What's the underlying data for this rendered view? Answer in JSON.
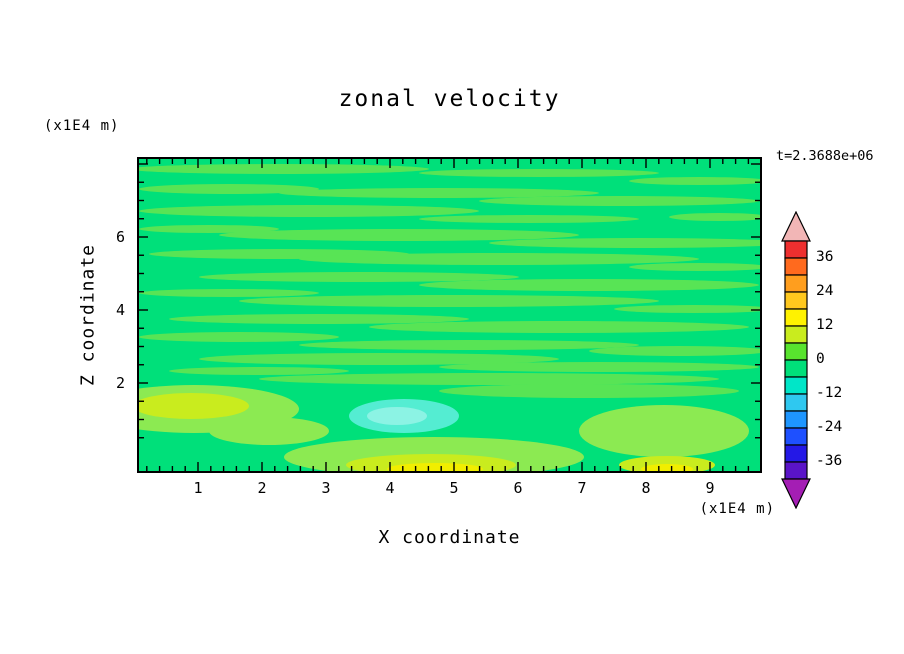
{
  "title": "zonal velocity",
  "timestamp": "t=2.3688e+06",
  "axes": {
    "x_label": "X coordinate",
    "x_unit": "(x1E4 m)",
    "y_label": "Z coordinate",
    "y_unit": "(x1E4 m)",
    "x_ticks": [
      "1",
      "2",
      "3",
      "4",
      "5",
      "6",
      "7",
      "8",
      "9"
    ],
    "y_ticks": [
      "6",
      "4",
      "2"
    ]
  },
  "colorbar": {
    "labels": [
      "36",
      "24",
      "12",
      "0",
      "-12",
      "-24",
      "-36"
    ],
    "band_colors": [
      "#EE2F2F",
      "#FF6A1E",
      "#FF9E1E",
      "#FFC81E",
      "#FFF200",
      "#C9EC1E",
      "#58E42E",
      "#00E07A",
      "#00E6C8",
      "#2FC8F0",
      "#1E96FF",
      "#1E50FF",
      "#2418E6",
      "#5A14C8"
    ],
    "arrow_top_color": "#F2B6B6",
    "arrow_bottom_color": "#A41EB4",
    "outline_color": "#000000"
  },
  "field_colors": {
    "background_minus6_to_0": "#00E07A",
    "streak_0_to_plus6": "#58E455",
    "halo_light_green": "#8CEA52",
    "chartreuse_plus6_to_plus12": "#C9EC1E",
    "yellow_plus12_to_plus18": "#F1EE00",
    "cyan_minus12_to_minus6": "#54EDD2",
    "cyan_core": "#8CF3E4"
  },
  "chart_data": {
    "type": "heatmap",
    "title": "zonal velocity",
    "xlabel": "X coordinate (x1E4 m)",
    "ylabel": "Z coordinate (x1E4 m)",
    "time_annotation": "t=2.3688e+06",
    "x_ticks": [
      1,
      2,
      3,
      4,
      5,
      6,
      7,
      8,
      9
    ],
    "y_ticks": [
      2,
      4,
      6
    ],
    "x_range_approx": [
      0,
      9.8
    ],
    "z_range_approx": [
      0,
      8
    ],
    "colorbar_labeled_levels": [
      36,
      24,
      12,
      0,
      -12,
      -24,
      -36
    ],
    "contour_interval": 6,
    "value_range_shown": [
      -42,
      42
    ],
    "features": [
      {
        "x": 1.0,
        "z": 1.4,
        "value_band": "+6 to +12",
        "color": "#C9EC1E"
      },
      {
        "x": 4.1,
        "z": 1.2,
        "value_band": "-12 to -6",
        "color": "#54EDD2"
      },
      {
        "x": 4.6,
        "z": 0.1,
        "value_band": "+12 to +18",
        "color": "#F1EE00"
      },
      {
        "x": 8.3,
        "z": 0.1,
        "value_band": "+12 to +18",
        "color": "#F1EE00"
      }
    ],
    "description": "Filled contour field of zonal velocity at t=2.3688e+06 s. Field is mostly between -6 and +6 (spring green) with many thin horizontal light-green streak bands (0 to +6) through the upper region; a chartreuse maximum (+6..+12) near x=1, z=1.4; a cyan minimum (-12..-6) near x=4, z=1.2; and yellow maxima (+12..+18) along the bottom edge near x=4.6 and x=8.3."
  }
}
